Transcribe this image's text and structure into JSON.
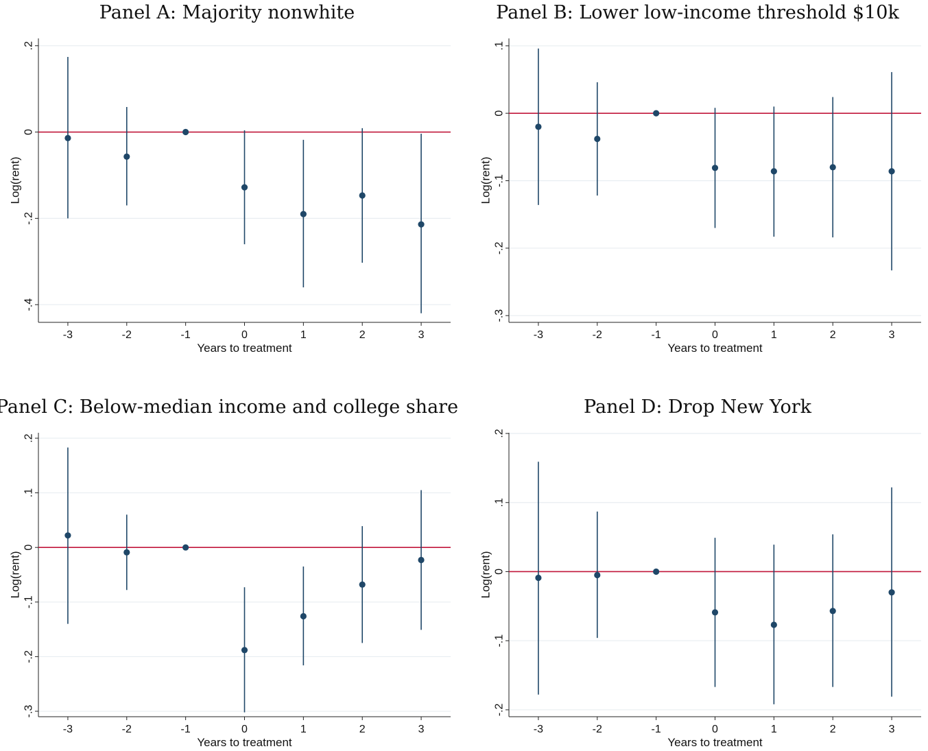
{
  "chart_data": [
    {
      "type": "scatter",
      "title": "Panel A: Majority nonwhite",
      "xlabel": "Years to treatment",
      "ylabel": "Log(rent)",
      "x": [
        -3,
        -2,
        -1,
        0,
        1,
        2,
        3
      ],
      "x_ticks": [
        "-3",
        "-2",
        "-1",
        "0",
        "1",
        "2",
        "3"
      ],
      "y_ticks": [
        {
          "value": 0.2,
          "label": ".2"
        },
        {
          "value": 0,
          "label": "0"
        },
        {
          "value": -0.2,
          "label": "-.2"
        },
        {
          "value": -0.4,
          "label": "-.4"
        }
      ],
      "ylim": [
        -0.441,
        0.217
      ],
      "estimates": [
        -0.014,
        -0.057,
        0.0,
        -0.128,
        -0.19,
        -0.147,
        -0.214
      ],
      "ci_low": [
        -0.2,
        -0.17,
        0.0,
        -0.26,
        -0.36,
        -0.303,
        -0.42
      ],
      "ci_high": [
        0.174,
        0.058,
        0.0,
        0.004,
        -0.018,
        0.009,
        -0.004
      ],
      "reference_line": 0,
      "grid": true,
      "colors": {
        "points": "#1f4768",
        "reference": "#c1163a",
        "grid": "#e8edf1",
        "axis": "#222222"
      }
    },
    {
      "type": "scatter",
      "title": "Panel B: Lower low-income threshold $10k",
      "xlabel": "Years to treatment",
      "ylabel": "Log(rent)",
      "x": [
        -3,
        -2,
        -1,
        0,
        1,
        2,
        3
      ],
      "x_ticks": [
        "-3",
        "-2",
        "-1",
        "0",
        "1",
        "2",
        "3"
      ],
      "y_ticks": [
        {
          "value": 0.1,
          "label": ".1"
        },
        {
          "value": 0,
          "label": "0"
        },
        {
          "value": -0.1,
          "label": "-.1"
        },
        {
          "value": -0.2,
          "label": "-.2"
        },
        {
          "value": -0.3,
          "label": "-.3"
        }
      ],
      "ylim": [
        -0.31,
        0.111
      ],
      "estimates": [
        -0.02,
        -0.038,
        0.0,
        -0.081,
        -0.086,
        -0.08,
        -0.086
      ],
      "ci_low": [
        -0.136,
        -0.122,
        0.0,
        -0.17,
        -0.183,
        -0.184,
        -0.233
      ],
      "ci_high": [
        0.096,
        0.046,
        0.0,
        0.008,
        0.01,
        0.024,
        0.061
      ],
      "reference_line": 0,
      "grid": true,
      "colors": {
        "points": "#1f4768",
        "reference": "#c1163a",
        "grid": "#e8edf1",
        "axis": "#222222"
      }
    },
    {
      "type": "scatter",
      "title": "Panel C: Below-median income and college share",
      "xlabel": "Years to treatment",
      "ylabel": "Log(rent)",
      "x": [
        -3,
        -2,
        -1,
        0,
        1,
        2,
        3
      ],
      "x_ticks": [
        "-3",
        "-2",
        "-1",
        "0",
        "1",
        "2",
        "3"
      ],
      "y_ticks": [
        {
          "value": 0.2,
          "label": ".2"
        },
        {
          "value": 0.1,
          "label": ".1"
        },
        {
          "value": 0,
          "label": "0"
        },
        {
          "value": -0.1,
          "label": "-.1"
        },
        {
          "value": -0.2,
          "label": "-.2"
        },
        {
          "value": -0.3,
          "label": "-.3"
        }
      ],
      "ylim": [
        -0.31,
        0.21
      ],
      "estimates": [
        0.022,
        -0.009,
        0.0,
        -0.188,
        -0.126,
        -0.068,
        -0.023
      ],
      "ci_low": [
        -0.14,
        -0.078,
        0.0,
        -0.302,
        -0.216,
        -0.175,
        -0.151
      ],
      "ci_high": [
        0.183,
        0.06,
        0.0,
        -0.073,
        -0.035,
        0.039,
        0.105
      ],
      "reference_line": 0,
      "grid": true,
      "colors": {
        "points": "#1f4768",
        "reference": "#c1163a",
        "grid": "#e8edf1",
        "axis": "#222222"
      }
    },
    {
      "type": "scatter",
      "title": "Panel D: Drop New York",
      "xlabel": "Years to treatment",
      "ylabel": "Log(rent)",
      "x": [
        -3,
        -2,
        -1,
        0,
        1,
        2,
        3
      ],
      "x_ticks": [
        "-3",
        "-2",
        "-1",
        "0",
        "1",
        "2",
        "3"
      ],
      "y_ticks": [
        {
          "value": 0.2,
          "label": ".2"
        },
        {
          "value": 0.1,
          "label": ".1"
        },
        {
          "value": 0,
          "label": "0"
        },
        {
          "value": -0.1,
          "label": "-.1"
        },
        {
          "value": -0.2,
          "label": "-.2"
        }
      ],
      "ylim": [
        -0.21,
        0.201
      ],
      "estimates": [
        -0.009,
        -0.005,
        0.0,
        -0.059,
        -0.077,
        -0.057,
        -0.03
      ],
      "ci_low": [
        -0.178,
        -0.096,
        0.0,
        -0.167,
        -0.192,
        -0.167,
        -0.181
      ],
      "ci_high": [
        0.159,
        0.087,
        0.0,
        0.049,
        0.039,
        0.054,
        0.122
      ],
      "reference_line": 0,
      "grid": true,
      "colors": {
        "points": "#1f4768",
        "reference": "#c1163a",
        "grid": "#e8edf1",
        "axis": "#222222"
      }
    }
  ]
}
